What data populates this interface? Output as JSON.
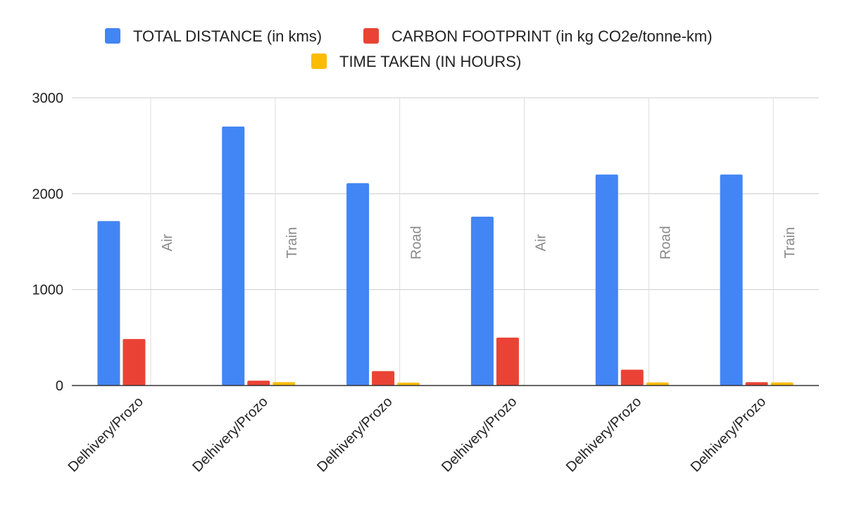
{
  "chart_data": {
    "type": "bar",
    "categories": [
      "Delhivery/Prozo",
      "Delhivery/Prozo",
      "Delhivery/Prozo",
      "Delhivery/Prozo",
      "Delhivery/Prozo",
      "Delhivery/Prozo"
    ],
    "annotations": [
      "Air",
      "Train",
      "Road",
      "Air",
      "Road",
      "Train"
    ],
    "series": [
      {
        "name": "TOTAL DISTANCE (in kms)",
        "color": "#4285f4",
        "values": [
          1715,
          2700,
          2110,
          1760,
          2200,
          2200
        ]
      },
      {
        "name": "CARBON FOOTPRINT (in kg CO2e/tonne-km)",
        "color": "#ea4335",
        "values": [
          485,
          50,
          150,
          500,
          165,
          35
        ]
      },
      {
        "name": "TIME TAKEN (IN HOURS)",
        "color": "#fbbc04",
        "values": [
          2,
          35,
          30,
          2,
          32,
          32
        ]
      }
    ],
    "ylim": [
      0,
      3000
    ],
    "yticks": [
      "0",
      "1000",
      "2000",
      "3000"
    ],
    "grid": true,
    "legend_position": "top"
  }
}
